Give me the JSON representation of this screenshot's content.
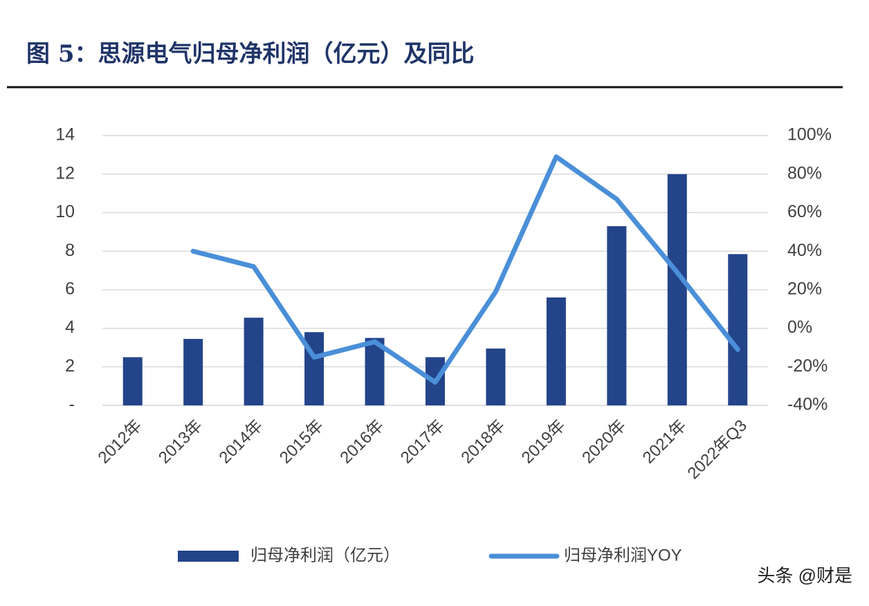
{
  "chart_data": {
    "type": "bar",
    "title": "图 5：思源电气归母净利润（亿元）及同比",
    "categories": [
      "2012年",
      "2013年",
      "2014年",
      "2015年",
      "2016年",
      "2017年",
      "2018年",
      "2019年",
      "2020年",
      "2021年",
      "2022年Q3"
    ],
    "series": [
      {
        "name": "归母净利润（亿元）",
        "type": "bar",
        "color": "#24448a",
        "values": [
          2.5,
          3.45,
          4.55,
          3.8,
          3.5,
          2.5,
          2.95,
          5.6,
          9.3,
          12.0,
          7.85
        ]
      },
      {
        "name": "归母净利润YOY",
        "type": "line",
        "axis": "y2",
        "color": "#4a8fd8",
        "values": [
          null,
          40,
          32,
          -15,
          -7,
          -28,
          19,
          89,
          67,
          29,
          -11
        ]
      }
    ],
    "ylim": [
      0,
      14
    ],
    "yticks": [
      {
        "value": 0,
        "label": "-"
      },
      2,
      4,
      6,
      8,
      10,
      12,
      14
    ],
    "y2lim": [
      -40,
      100
    ],
    "y2ticks": [
      {
        "value": -40,
        "label": "-40%"
      },
      {
        "value": -20,
        "label": "-20%"
      },
      {
        "value": 0,
        "label": "0%"
      },
      {
        "value": 20,
        "label": "20%"
      },
      {
        "value": 40,
        "label": "40%"
      },
      {
        "value": 60,
        "label": "60%"
      },
      {
        "value": 80,
        "label": "80%"
      },
      {
        "value": 100,
        "label": "100%"
      }
    ],
    "grid": true,
    "legend": "bottom"
  },
  "watermark": "头条 @财是"
}
